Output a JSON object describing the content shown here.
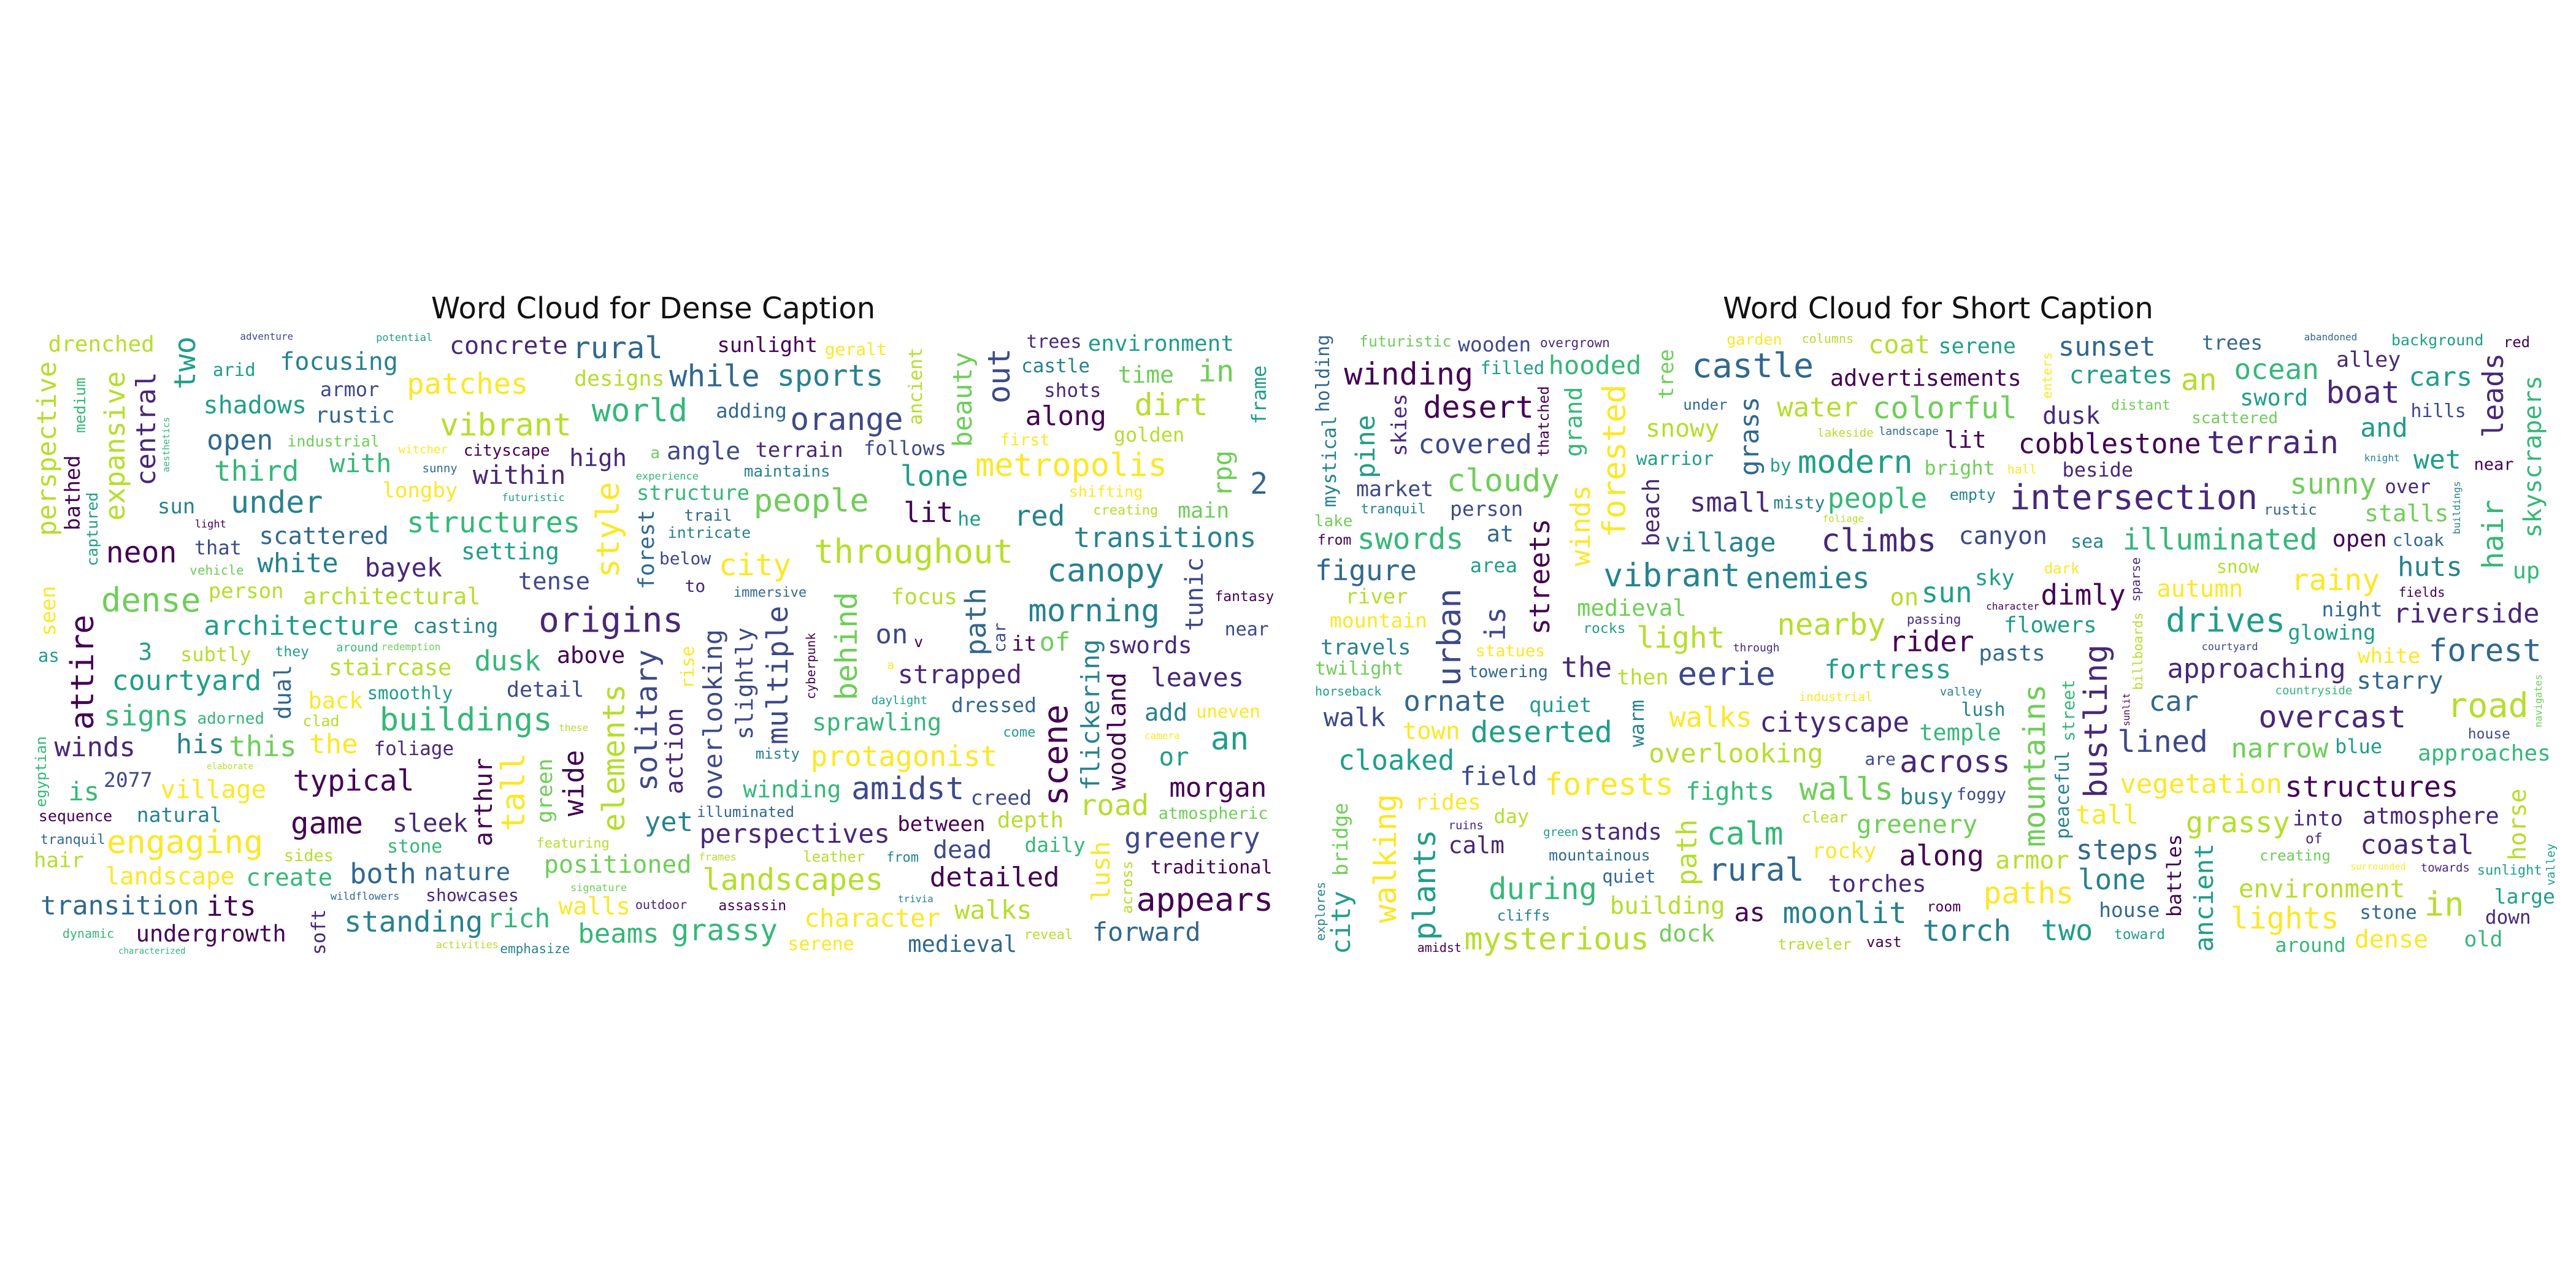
{
  "figure": {
    "panels": [
      {
        "title": "Word Cloud for Dense Caption",
        "words": [
          "throughout",
          "under",
          "dense",
          "engaging",
          "elements",
          "morning",
          "structures",
          "vibrant",
          "patches",
          "origins",
          "standing",
          "multiple",
          "attire",
          "canopy",
          "signs",
          "an",
          "scene",
          "typical",
          "out",
          "transitions",
          "metropolis",
          "dirt",
          "its",
          "amidst",
          "people",
          "landscapes",
          "appears",
          "two",
          "tall",
          "buildings",
          "lone",
          "orange",
          "white",
          "transition",
          "style",
          "lit",
          "in",
          "both",
          "world",
          "perspective",
          "forward",
          "grassy",
          "neon",
          "dusk",
          "while",
          "path",
          "architecture",
          "on",
          "detailed",
          "city",
          "game",
          "beauty",
          "red",
          "third",
          "with",
          "leaves",
          "or",
          "road",
          "dead",
          "2",
          "positioned",
          "rural",
          "the",
          "courtyard",
          "shadows",
          "solitary",
          "bayek",
          "protagonist",
          "behind",
          "focusing",
          "winds",
          "perspectives",
          "expansive",
          "overlooking",
          "flickering",
          "along",
          "greenery",
          "village",
          "rpg",
          "yet",
          "sports",
          "wide",
          "angle",
          "sprawling",
          "this",
          "arthur",
          "within",
          "character",
          "morgan",
          "tense",
          "rich",
          "beams",
          "concrete",
          "nature",
          "staircase",
          "strapped",
          "medieval",
          "open",
          "time",
          "central",
          "sleek",
          "scattered",
          "is",
          "depth",
          "back",
          "landscape",
          "his",
          "architectural",
          "tunic",
          "3",
          "lush",
          "undergrowth",
          "environment",
          "of",
          "high",
          "swords",
          "woodland",
          "main",
          "between",
          "walks",
          "walls",
          "hair",
          "action",
          "sun",
          "setting",
          "sunlight",
          "create",
          "person",
          "industrial",
          "terrain",
          "structure",
          "rustic",
          "intricate",
          "add",
          "it",
          "fantasy",
          "creating",
          "longby",
          "seen",
          "winding",
          "creed",
          "he",
          "drenched",
          "illuminated",
          "subtly",
          "dual",
          "immersive",
          "natural",
          "armor",
          "castle",
          "adding",
          "slightly",
          "traditional",
          "designs",
          "soft",
          "frame",
          "green",
          "smoothly",
          "serene",
          "dressed",
          "casting",
          "focus",
          "that",
          "dynamic",
          "featuring",
          "detail",
          "stone",
          "ancient",
          "tranquil",
          "foliage",
          "above",
          "outdoor",
          "car",
          "showcases",
          "potential",
          "reveal",
          "rise",
          "geralt",
          "forest",
          "near",
          "emphasize",
          "maintains",
          "adventure",
          "golden",
          "adorned",
          "shots",
          "futuristic",
          "daily",
          "cityscape",
          "follows",
          "bathed",
          "sunny",
          "cyberpunk",
          "sequence",
          "aesthetics",
          "arid",
          "progression",
          "around",
          "2077",
          "clad",
          "misty",
          "activities",
          "egyptian",
          "sides",
          "wildflowers",
          "as",
          "medium",
          "to",
          "shifting",
          "uneven",
          "frames",
          "across",
          "daylight",
          "trees",
          "first",
          "they",
          "redemption",
          "below",
          "captured",
          "atmospheric",
          "witcher",
          "light",
          "trail",
          "come",
          "trivia",
          "signature",
          "elaborate",
          "assassin",
          "camera",
          "vehicle",
          "characterized",
          "leather",
          "from",
          "experience",
          "these",
          "v",
          "a",
          "a"
        ]
      },
      {
        "title": "Word Cloud for Short Caption",
        "words": [
          "illuminated",
          "nearby",
          "intersection",
          "castle",
          "light",
          "climbs",
          "forests",
          "bustling",
          "modern",
          "sunny",
          "forested",
          "mysterious",
          "plants",
          "road",
          "rural",
          "paths",
          "lone",
          "walking",
          "overcast",
          "vibrant",
          "drives",
          "desert",
          "grassy",
          "in",
          "structures",
          "swords",
          "ornate",
          "the",
          "eerie",
          "colorful",
          "across",
          "urban",
          "an",
          "winding",
          "moonlit",
          "terrain",
          "forest",
          "overlooking",
          "steps",
          "cloaked",
          "coastal",
          "cityscape",
          "calm",
          "boat",
          "and",
          "cloudy",
          "walls",
          "approaching",
          "small",
          "coat",
          "narrow",
          "village",
          "cars",
          "sunset",
          "torch",
          "dimly",
          "two",
          "lights",
          "fortress",
          "enemies",
          "along",
          "mountains",
          "hair",
          "hooded",
          "is",
          "ocean",
          "water",
          "sun",
          "city",
          "lined",
          "deserted",
          "during",
          "grass",
          "rainy",
          "figure",
          "car",
          "path",
          "snowy",
          "ancient",
          "winds",
          "canyon",
          "building",
          "greenery",
          "cobblestone",
          "streets",
          "leads",
          "horse",
          "as",
          "autumn",
          "stands",
          "open",
          "lit",
          "riverside",
          "people",
          "vegetation",
          "wet",
          "rider",
          "covered",
          "rides",
          "huts",
          "advertisements",
          "walks",
          "creates",
          "sky",
          "pine",
          "medieval",
          "tall",
          "dusk",
          "background",
          "old",
          "environment",
          "at",
          "sword",
          "up",
          "armor",
          "dock",
          "travels",
          "calm",
          "river",
          "quiet",
          "stalls",
          "pasts",
          "approaches",
          "walk",
          "dense",
          "traveler",
          "field",
          "large",
          "wooden",
          "market",
          "serene",
          "atmosphere",
          "mountainous",
          "fights",
          "glowing",
          "night",
          "on",
          "creating",
          "skyscrapers",
          "then",
          "mystical",
          "town",
          "torches",
          "blue",
          "bridge",
          "area",
          "temple",
          "mountain",
          "battles",
          "flowers",
          "skies",
          "distant",
          "bright",
          "grand",
          "white",
          "stone",
          "warrior",
          "starry",
          "by",
          "rocky",
          "tree",
          "lush",
          "around",
          "house",
          "toward",
          "overgrown",
          "billboards",
          "beach",
          "towards",
          "person",
          "are",
          "twilight",
          "sunlight",
          "sparse",
          "busy",
          "trees",
          "near",
          "snow",
          "foggy",
          "valley",
          "street",
          "beside",
          "alley",
          "buildings",
          "warm",
          "landscape",
          "into",
          "horseback",
          "cloak",
          "green",
          "industrial",
          "fields",
          "desolate",
          "holding",
          "sea",
          "futuristic",
          "towering",
          "filled",
          "hills",
          "ruins",
          "explores",
          "countryside",
          "character",
          "scattered",
          "amidst",
          "empty",
          "down",
          "through",
          "peaceful",
          "dark",
          "lakeside",
          "navigates",
          "day",
          "clear",
          "from",
          "abandoned",
          "garden",
          "misty",
          "rocks",
          "rustic",
          "over",
          "cliffs",
          "vast",
          "red",
          "of",
          "quiet",
          "statues",
          "under",
          "courtyard",
          "house",
          "knight",
          "passing",
          "room",
          "tranquil",
          "enters",
          "lake",
          "foliage",
          "surrounded",
          "hall",
          "columns",
          "thatched",
          "sunlit",
          "valley"
        ]
      }
    ]
  }
}
